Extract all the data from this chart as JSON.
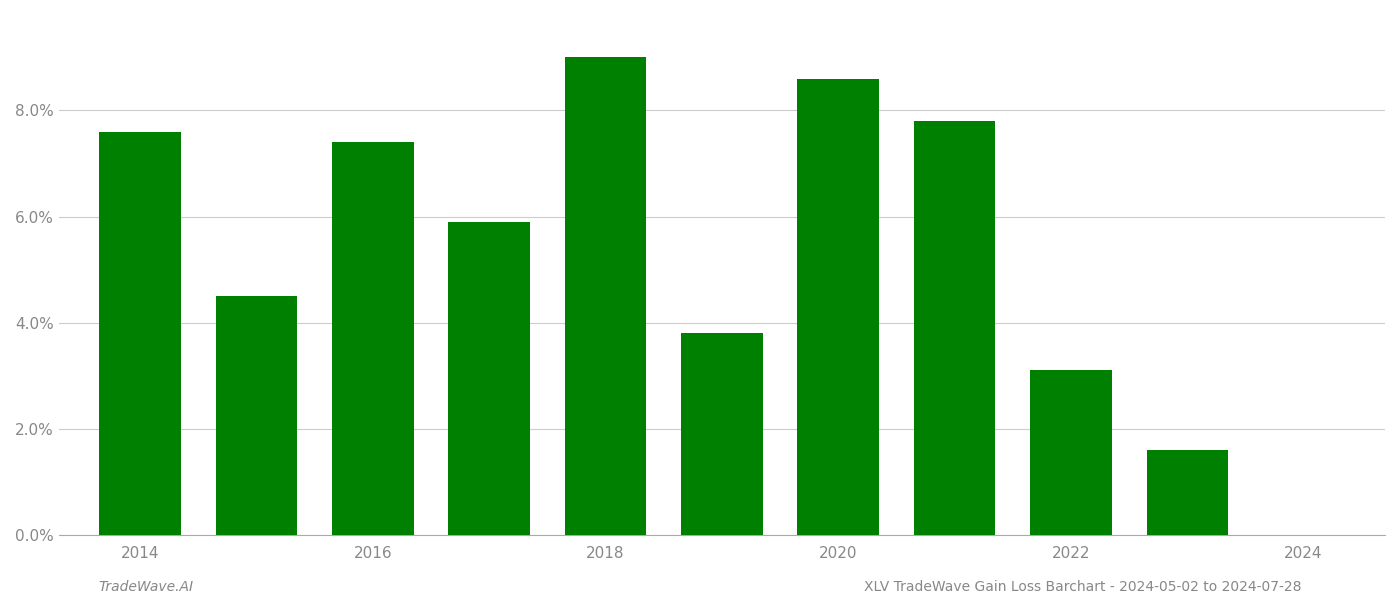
{
  "years": [
    2014,
    2015,
    2016,
    2017,
    2018,
    2019,
    2020,
    2021,
    2022,
    2023
  ],
  "values": [
    0.076,
    0.045,
    0.074,
    0.059,
    0.09,
    0.038,
    0.086,
    0.078,
    0.031,
    0.016
  ],
  "bar_color": "#008000",
  "footer_left": "TradeWave.AI",
  "footer_right": "XLV TradeWave Gain Loss Barchart - 2024-05-02 to 2024-07-28",
  "ylim": [
    0,
    0.098
  ],
  "yticks": [
    0.0,
    0.02,
    0.04,
    0.06,
    0.08
  ],
  "ytick_labels": [
    "0.0%",
    "2.0%",
    "4.0%",
    "6.0%",
    "8.0%"
  ],
  "xtick_shown": [
    2014,
    2016,
    2018,
    2020,
    2022,
    2024
  ],
  "xlim": [
    2013.3,
    2024.7
  ],
  "background_color": "#ffffff",
  "bar_width": 0.7,
  "grid_color": "#cccccc",
  "tick_label_color": "#888888",
  "footer_fontsize": 10,
  "axis_fontsize": 11
}
